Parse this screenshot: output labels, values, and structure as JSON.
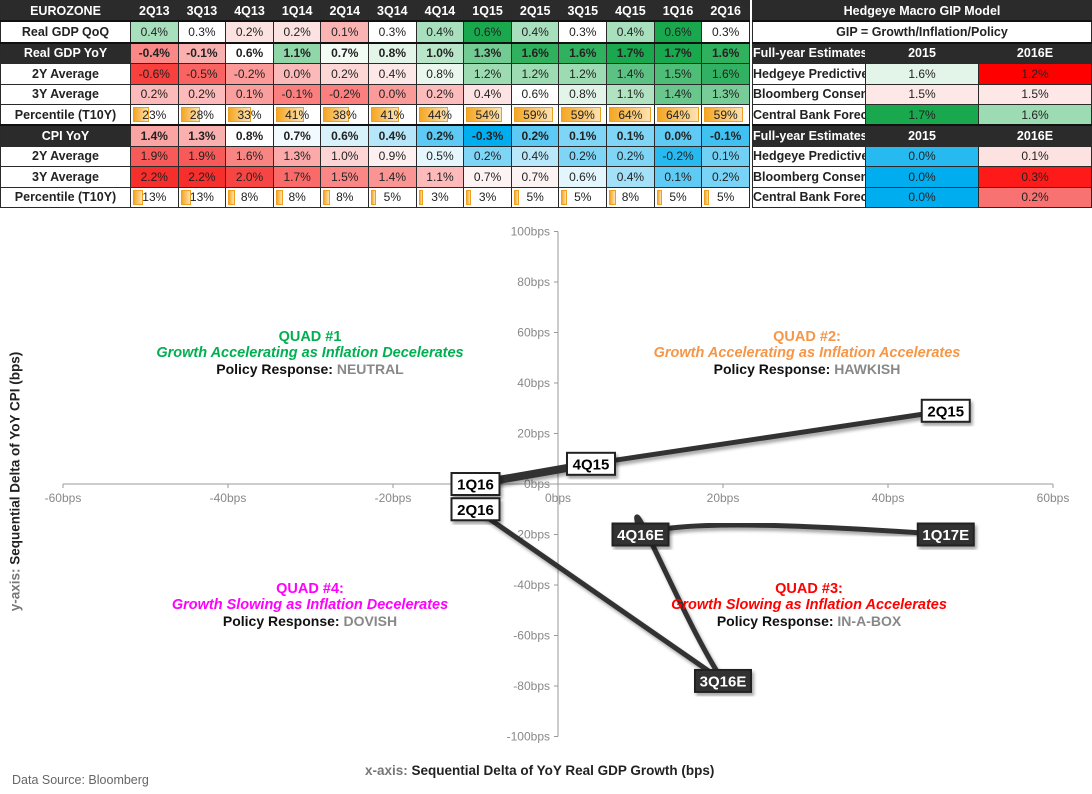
{
  "table": {
    "corner": "EUROZONE",
    "periods": [
      "2Q13",
      "3Q13",
      "4Q13",
      "1Q14",
      "2Q14",
      "3Q14",
      "4Q14",
      "1Q15",
      "2Q15",
      "3Q15",
      "4Q15",
      "1Q16",
      "2Q16"
    ],
    "rows": [
      {
        "label": "Real GDP QoQ",
        "header": false,
        "sep": false,
        "bold": false,
        "values": [
          "0.4%",
          "0.3%",
          "0.2%",
          "0.2%",
          "0.1%",
          "0.3%",
          "0.4%",
          "0.6%",
          "0.4%",
          "0.3%",
          "0.4%",
          "0.6%",
          "0.3%"
        ],
        "colors": [
          "#a8dfbc",
          "#ffffff",
          "#fde2e2",
          "#fde2e2",
          "#fbb4b4",
          "#ffffff",
          "#a8dfbc",
          "#1aa84f",
          "#a8dfbc",
          "#ffffff",
          "#a8dfbc",
          "#1aa84f",
          "#ffffff"
        ]
      },
      {
        "label": "Real GDP YoY",
        "header": true,
        "sep": true,
        "bold": true,
        "values": [
          "-0.4%",
          "-0.1%",
          "0.6%",
          "1.1%",
          "0.7%",
          "0.8%",
          "1.0%",
          "1.3%",
          "1.6%",
          "1.6%",
          "1.7%",
          "1.7%",
          "1.6%"
        ],
        "colors": [
          "#f98887",
          "#fbb0b0",
          "#ffffff",
          "#8fd6a9",
          "#f3fbf5",
          "#e3f5e9",
          "#b9e6c8",
          "#72cb92",
          "#2fb15e",
          "#2fb15e",
          "#1aa84f",
          "#1aa84f",
          "#2fb15e"
        ]
      },
      {
        "label": "2Y Average",
        "header": false,
        "sep": false,
        "bold": false,
        "values": [
          "-0.6%",
          "-0.5%",
          "-0.2%",
          "0.0%",
          "0.2%",
          "0.4%",
          "0.8%",
          "1.2%",
          "1.2%",
          "1.2%",
          "1.4%",
          "1.5%",
          "1.6%"
        ],
        "colors": [
          "#f8403e",
          "#f96361",
          "#fb9a99",
          "#fcb9b9",
          "#fdd6d6",
          "#fde7e7",
          "#e9f7ee",
          "#9ddbb2",
          "#9ddbb2",
          "#9ddbb2",
          "#5cc283",
          "#4dbd77",
          "#30b262"
        ]
      },
      {
        "label": "3Y Average",
        "header": false,
        "sep": false,
        "bold": false,
        "values": [
          "0.2%",
          "0.2%",
          "0.1%",
          "-0.1%",
          "-0.2%",
          "0.0%",
          "0.2%",
          "0.4%",
          "0.6%",
          "0.8%",
          "1.1%",
          "1.4%",
          "1.3%"
        ],
        "colors": [
          "#fcbaba",
          "#fcbaba",
          "#fb9e9e",
          "#fa7f7e",
          "#fa7f7e",
          "#fa9b9a",
          "#fcbcbc",
          "#fde3e3",
          "#ffffff",
          "#e3f5e9",
          "#b1e3c3",
          "#69c78d",
          "#78cc97"
        ]
      },
      {
        "label": "Percentile (T10Y)",
        "header": false,
        "sep": false,
        "bold": false,
        "percentile": [
          23,
          28,
          33,
          41,
          38,
          41,
          44,
          54,
          59,
          59,
          64,
          64,
          59
        ],
        "values": [
          "23%",
          "28%",
          "33%",
          "41%",
          "38%",
          "41%",
          "44%",
          "54%",
          "59%",
          "59%",
          "64%",
          "64%",
          "59%"
        ]
      },
      {
        "label": "CPI YoY",
        "header": true,
        "sep": true,
        "bold": true,
        "values": [
          "1.4%",
          "1.3%",
          "0.8%",
          "0.7%",
          "0.6%",
          "0.4%",
          "0.2%",
          "-0.3%",
          "0.2%",
          "0.1%",
          "0.1%",
          "0.0%",
          "-0.1%"
        ],
        "colors": [
          "#fba4a4",
          "#fbb0b0",
          "#ffffff",
          "#f1fafe",
          "#d8f2fc",
          "#b6e6f9",
          "#5ccaf4",
          "#00aeef",
          "#5ccaf4",
          "#7fd5f6",
          "#7fd5f6",
          "#5fcbf4",
          "#3fc2f2"
        ]
      },
      {
        "label": "2Y Average",
        "header": false,
        "sep": false,
        "bold": false,
        "values": [
          "1.9%",
          "1.9%",
          "1.6%",
          "1.3%",
          "1.0%",
          "0.9%",
          "0.5%",
          "0.2%",
          "0.4%",
          "0.2%",
          "0.2%",
          "-0.2%",
          "0.1%"
        ],
        "colors": [
          "#f75a58",
          "#f75a58",
          "#f98583",
          "#fbaaa9",
          "#fdd5d5",
          "#fef0f0",
          "#e6f6fd",
          "#7fd5f6",
          "#b9e8fa",
          "#7fd5f6",
          "#7fd5f6",
          "#26baf0",
          "#71d1f5"
        ]
      },
      {
        "label": "3Y Average",
        "header": false,
        "sep": false,
        "bold": false,
        "values": [
          "2.2%",
          "2.2%",
          "2.0%",
          "1.7%",
          "1.5%",
          "1.4%",
          "1.1%",
          "0.7%",
          "0.7%",
          "0.6%",
          "0.4%",
          "0.1%",
          "0.2%"
        ],
        "colors": [
          "#f62e2c",
          "#f62e2c",
          "#f74543",
          "#f96a68",
          "#fa8786",
          "#fb9594",
          "#fcbaba",
          "#fdf3f3",
          "#fdf3f3",
          "#e3f5fd",
          "#a4e0f8",
          "#5fcbf4",
          "#79d3f6"
        ]
      },
      {
        "label": "Percentile (T10Y)",
        "header": false,
        "sep": false,
        "bold": false,
        "percentile": [
          13,
          13,
          8,
          8,
          8,
          5,
          3,
          3,
          5,
          5,
          8,
          5,
          5
        ],
        "values": [
          "13%",
          "13%",
          "8%",
          "8%",
          "8%",
          "5%",
          "3%",
          "3%",
          "5%",
          "5%",
          "8%",
          "5%",
          "5%"
        ]
      }
    ]
  },
  "model": {
    "title": "Hedgeye Macro GIP Model",
    "subtitle": "GIP = Growth/Inflation/Policy",
    "sections": [
      {
        "header": "Full-year Estimates",
        "col1": "2015",
        "col2": "2016E",
        "rows": [
          {
            "label": "Hedgeye Predictive Tracking Algorithm",
            "v1": "1.6%",
            "v2": "1.2%",
            "c1": "#e3f5e9",
            "c2": "#ff0000"
          },
          {
            "label": "Bloomberg Consensus Estimate",
            "v1": "1.5%",
            "v2": "1.5%",
            "c1": "#fde7e7",
            "c2": "#fde7e7"
          },
          {
            "label": "Central Bank Forecast",
            "v1": "1.7%",
            "v2": "1.6%",
            "c1": "#1aa84f",
            "c2": "#9ddbb2"
          }
        ]
      },
      {
        "header": "Full-year Estimates",
        "col1": "2015",
        "col2": "2016E",
        "rows": [
          {
            "label": "Hedgeye Predictive Tracking Algorithm",
            "v1": "0.0%",
            "v2": "0.1%",
            "c1": "#26baf0",
            "c2": "#fde2e2"
          },
          {
            "label": "Bloomberg Consensus Estimate",
            "v1": "0.0%",
            "v2": "0.3%",
            "c1": "#00aeef",
            "c2": "#ff1a1a"
          },
          {
            "label": "Central Bank Forecast",
            "v1": "0.0%",
            "v2": "0.2%",
            "c1": "#00aeef",
            "c2": "#f87271"
          }
        ]
      }
    ]
  },
  "quads": {
    "q1": {
      "title": "QUAD #1",
      "subtitle": "Growth Accelerating as Inflation Decelerates",
      "policy_label": "Policy Response:",
      "policy": "NEUTRAL",
      "color": "#00b050"
    },
    "q2": {
      "title": "QUAD #2:",
      "subtitle": "Growth Accelerating as Inflation Accelerates",
      "policy_label": "Policy Response:",
      "policy": "HAWKISH",
      "color": "#f79646"
    },
    "q3": {
      "title": "QUAD #3:",
      "subtitle": "Growth Slowing as Inflation Accelerates",
      "policy_label": "Policy Response:",
      "policy": "IN-A-BOX",
      "color": "#ff0000"
    },
    "q4": {
      "title": "QUAD #4:",
      "subtitle": "Growth Slowing as Inflation Decelerates",
      "policy_label": "Policy Response:",
      "policy": "DOVISH",
      "color": "#ff00ff"
    }
  },
  "chart_data": {
    "type": "scatter",
    "xlabel_prefix": "x-axis:",
    "xlabel": "Sequential Delta of YoY Real GDP Growth (bps)",
    "ylabel_prefix": "y-axis:",
    "ylabel": "Sequential Delta of YoY CPI (bps)",
    "xlim": [
      -60,
      60
    ],
    "ylim": [
      -100,
      100
    ],
    "xticks": [
      "-60bps",
      "-40bps",
      "-20bps",
      "0bps",
      "20bps",
      "40bps",
      "60bps"
    ],
    "xtick_values": [
      -60,
      -40,
      -20,
      0,
      20,
      40,
      60
    ],
    "yticks": [
      "100bps",
      "80bps",
      "60bps",
      "40bps",
      "20bps",
      "0bps",
      "-20bps",
      "-40bps",
      "-60bps",
      "-80bps",
      "-100bps"
    ],
    "ytick_values": [
      100,
      80,
      60,
      40,
      20,
      0,
      -20,
      -40,
      -60,
      -80,
      -100
    ],
    "grid": false,
    "connected": true,
    "points": [
      {
        "label": "2Q15",
        "x": 47,
        "y": 29,
        "estimate": false
      },
      {
        "label": "4Q15",
        "x": 4,
        "y": 8,
        "estimate": false
      },
      {
        "label": "1Q16",
        "x": -10,
        "y": 0,
        "estimate": false
      },
      {
        "label": "2Q16",
        "x": -10,
        "y": -10,
        "estimate": false
      },
      {
        "label": "3Q16E",
        "x": 20,
        "y": -78,
        "estimate": true
      },
      {
        "label": "4Q16E",
        "x": 10,
        "y": -20,
        "estimate": true
      },
      {
        "label": "1Q17E",
        "x": 47,
        "y": -20,
        "estimate": true
      }
    ]
  },
  "source": "Data Source: Bloomberg"
}
